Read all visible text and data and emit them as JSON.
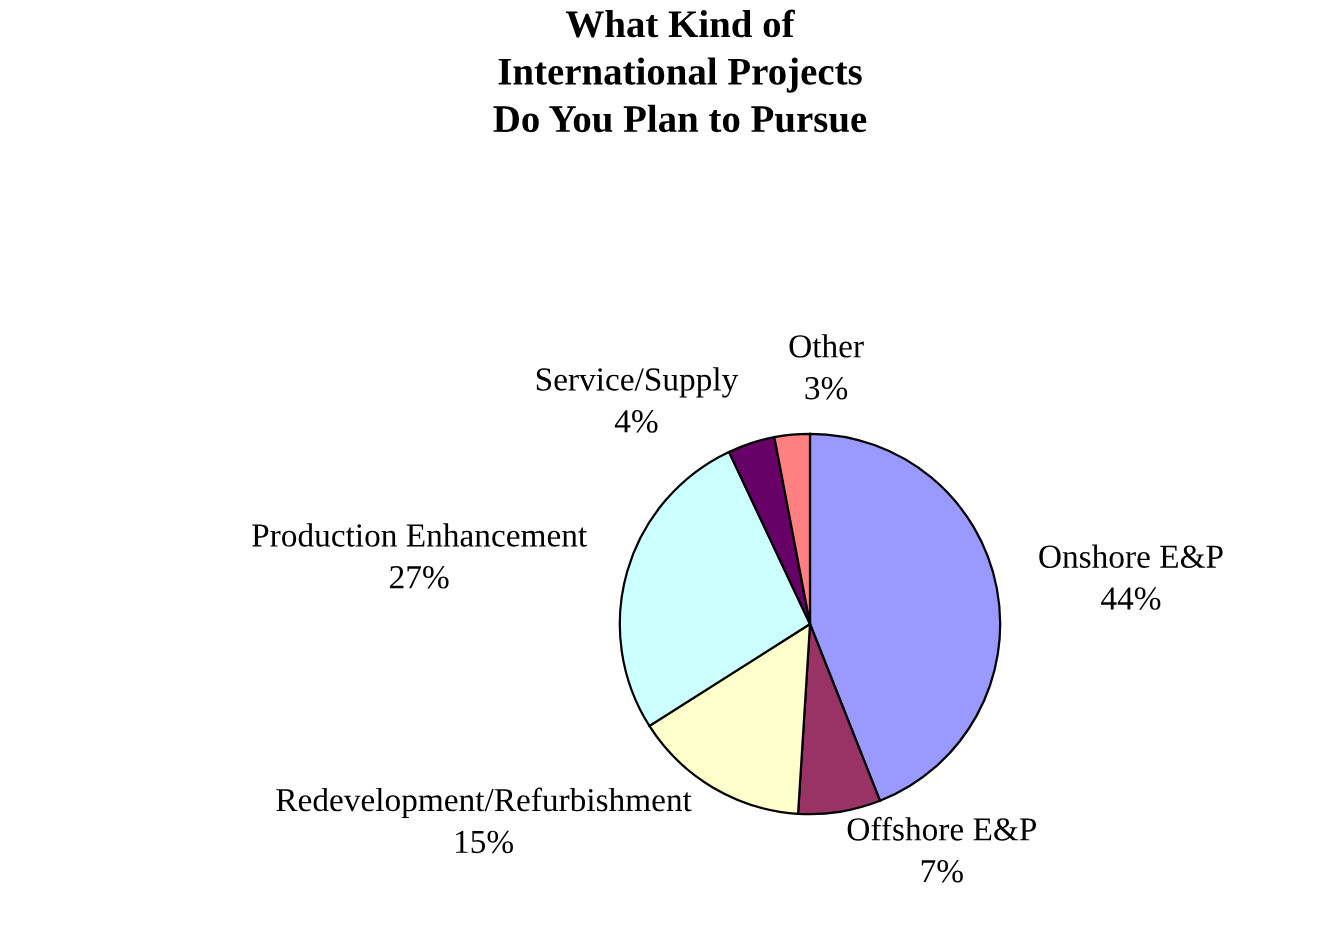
{
  "chart_data": {
    "type": "pie",
    "title": "What Kind of\nInternational Projects\nDo You Plan to Pursue",
    "categories": [
      "Onshore E&P",
      "Offshore E&P",
      "Redevelopment/Refurbishment",
      "Production Enhancement",
      "Service/Supply",
      "Other"
    ],
    "values": [
      44,
      7,
      15,
      27,
      4,
      3
    ],
    "value_labels": [
      "44%",
      "7%",
      "15%",
      "27%",
      "4%",
      "3%"
    ],
    "colors": [
      "#9999ff",
      "#993366",
      "#ffffcc",
      "#ccffff",
      "#660066",
      "#ff8080"
    ],
    "legend": false
  }
}
